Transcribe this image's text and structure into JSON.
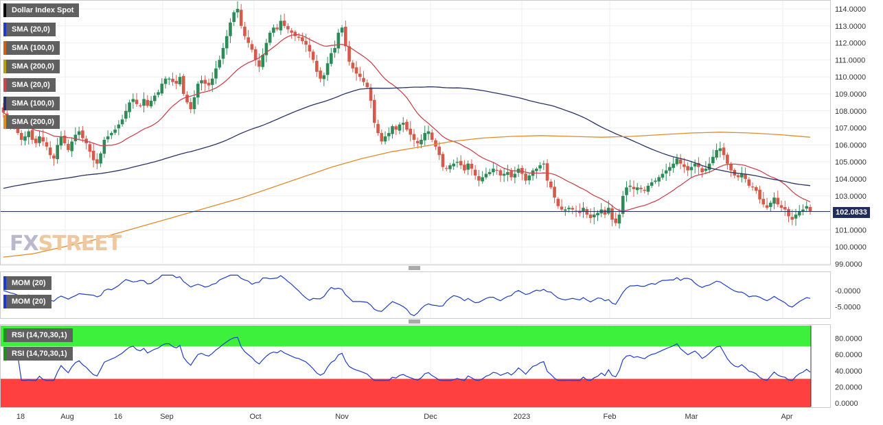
{
  "labels": {
    "main": [
      {
        "text": "Dollar Index Spot",
        "color": "#000000"
      },
      {
        "text": "SMA (20,0)",
        "color": "#1e3cc8"
      },
      {
        "text": "SMA (100,0)",
        "color": "#c86414"
      },
      {
        "text": "SMA (200,0)",
        "color": "#b4a014"
      },
      {
        "text": "SMA (20,0)",
        "color": "#c84650"
      },
      {
        "text": "SMA (100,0)",
        "color": "#283264"
      },
      {
        "text": "SMA (200,0)",
        "color": "#e08c28"
      }
    ],
    "mom": [
      {
        "text": "MOM (20)",
        "color": "#1e3cc8"
      },
      {
        "text": "MOM (20)",
        "color": "#1e3cc8"
      }
    ],
    "rsi": [
      {
        "text": "RSI (14,70,30,1)",
        "color": "#209020"
      },
      {
        "text": "RSI (14,70,30,1)",
        "color": "#209020"
      }
    ]
  },
  "logo": {
    "part1": "FX",
    "part2": "STREET"
  },
  "last_price": "102.0833",
  "colors": {
    "bull": "#2e8b57",
    "bear": "#d65a4a",
    "sma20": "#c84650",
    "sma100": "#283264",
    "sma200": "#e08c28",
    "osc": "#1e3cc8",
    "overbought": "#3cf03c",
    "oversold": "#ff4040"
  },
  "chart_data": [
    {
      "type": "candlestick",
      "title": "Dollar Index Spot",
      "ylim": [
        99,
        114
      ],
      "y_ticks": [
        "114.0000",
        "113.0000",
        "112.0000",
        "111.0000",
        "110.0000",
        "109.0000",
        "108.0000",
        "107.0000",
        "106.0000",
        "105.0000",
        "104.0000",
        "103.0000",
        "102.0000",
        "101.0000",
        "100.0000",
        "99.0000"
      ],
      "x_ticks": [
        "18",
        "Aug",
        "16",
        "Sep",
        "Oct",
        "Nov",
        "Dec",
        "2023",
        "Feb",
        "Mar",
        "Apr"
      ],
      "last_value": 102.0833,
      "close": [
        107.9,
        107.6,
        107.3,
        107.1,
        106.7,
        106.3,
        106.5,
        106.8,
        106.3,
        106.1,
        106.5,
        106.2,
        105.9,
        105.4,
        105.2,
        106.0,
        106.5,
        106.1,
        105.7,
        106.2,
        106.6,
        106.8,
        106.4,
        106.1,
        105.6,
        105.1,
        104.9,
        105.5,
        106.3,
        106.5,
        106.7,
        106.9,
        107.2,
        107.5,
        108.0,
        108.5,
        108.7,
        108.4,
        108.3,
        108.7,
        108.3,
        108.6,
        108.9,
        109.1,
        109.6,
        109.9,
        109.9,
        109.7,
        109.6,
        110.0,
        109.0,
        108.5,
        108.1,
        108.8,
        109.6,
        109.8,
        109.6,
        109.5,
        109.9,
        110.5,
        111.0,
        111.7,
        112.4,
        113.2,
        113.8,
        114.0,
        113.0,
        112.4,
        112.0,
        111.6,
        111.0,
        110.6,
        111.3,
        112.0,
        112.6,
        112.9,
        112.8,
        113.3,
        113.0,
        112.8,
        112.6,
        112.4,
        112.3,
        112.1,
        111.9,
        111.5,
        111.0,
        110.3,
        109.9,
        110.1,
        110.8,
        111.4,
        111.7,
        112.6,
        112.9,
        111.8,
        110.9,
        110.5,
        110.2,
        110.0,
        109.7,
        109.4,
        108.6,
        107.3,
        106.7,
        106.2,
        106.5,
        106.7,
        107.1,
        106.9,
        107.2,
        107.3,
        106.9,
        106.6,
        106.3,
        106.1,
        106.3,
        106.7,
        106.8,
        106.3,
        105.9,
        105.4,
        104.7,
        104.6,
        104.8,
        104.9,
        105.0,
        104.8,
        104.5,
        104.9,
        104.6,
        104.2,
        103.9,
        104.1,
        104.3,
        104.4,
        104.6,
        104.5,
        104.2,
        104.3,
        104.4,
        104.1,
        104.3,
        104.6,
        104.3,
        103.9,
        104.2,
        104.5,
        104.6,
        104.8,
        104.9,
        103.9,
        103.5,
        102.9,
        102.4,
        102.2,
        102.2,
        102.3,
        102.2,
        102.1,
        102.0,
        102.3,
        101.9,
        101.7,
        101.9,
        102.0,
        102.2,
        101.9,
        102.3,
        101.6,
        101.4,
        101.9,
        103.0,
        103.5,
        103.6,
        103.4,
        103.5,
        103.4,
        103.3,
        103.6,
        103.8,
        103.9,
        104.1,
        104.3,
        104.5,
        104.7,
        104.9,
        105.2,
        104.9,
        104.7,
        104.5,
        104.7,
        104.9,
        104.7,
        104.4,
        104.6,
        104.9,
        105.3,
        105.7,
        105.8,
        105.4,
        104.9,
        104.5,
        104.2,
        104.1,
        104.3,
        104.0,
        103.6,
        103.5,
        103.3,
        102.8,
        102.5,
        102.3,
        102.6,
        102.9,
        102.5,
        102.3,
        102.2,
        101.8,
        101.6,
        101.9,
        102.1,
        102.2,
        102.4,
        102.1
      ],
      "series": [
        {
          "name": "SMA (20,0)"
        },
        {
          "name": "SMA (100,0)"
        },
        {
          "name": "SMA (200,0)",
          "values_approx": [
            99.4,
            99.6,
            100.0,
            100.4,
            100.9,
            101.4,
            101.9,
            102.4,
            102.9,
            103.5,
            104.1,
            104.7,
            105.2,
            105.6,
            105.9,
            106.2,
            106.4,
            106.5,
            106.55,
            106.5,
            106.45,
            106.5,
            106.6,
            106.7,
            106.75,
            106.7,
            106.6,
            106.45
          ]
        }
      ]
    },
    {
      "type": "line",
      "title": "MOM (20)",
      "y_ticks": [
        "-0.0000",
        "-5.0000"
      ],
      "ylim": [
        -8,
        5
      ]
    },
    {
      "type": "line",
      "title": "RSI (14,70,30,1)",
      "ylim": [
        0,
        100
      ],
      "y_ticks": [
        "80.0000",
        "60.0000",
        "40.0000",
        "20.0000",
        "0.0000"
      ],
      "levels": {
        "overbought": 70,
        "oversold": 30
      }
    }
  ]
}
